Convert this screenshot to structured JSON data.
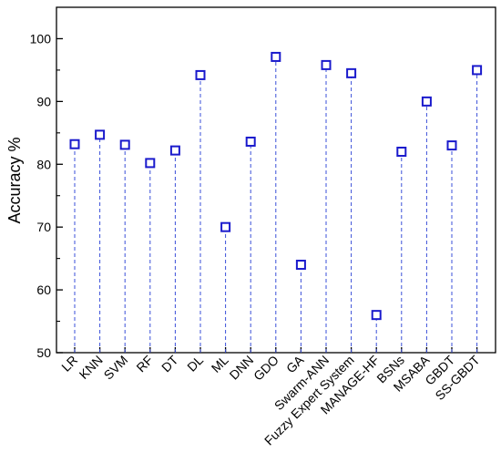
{
  "chart_data": {
    "type": "scatter",
    "title": "",
    "xlabel": "",
    "ylabel": "Accuracy %",
    "ylim": [
      50,
      105
    ],
    "yticks": [
      50,
      60,
      70,
      80,
      90,
      100
    ],
    "grid": false,
    "legend": "none",
    "marker": "open-square",
    "drop_lines": "dashed",
    "categories": [
      "LR",
      "KNN",
      "SVM",
      "RF",
      "DT",
      "DL",
      "ML",
      "DNN",
      "GDO",
      "GA",
      "Swarm-ANN",
      "Fuzzy Expert System",
      "MANAGE-HF",
      "BSNs",
      "MSABA",
      "GBDT",
      "SS-GBDT"
    ],
    "values": [
      83.2,
      84.7,
      83.1,
      80.2,
      82.2,
      94.2,
      70.0,
      83.6,
      97.1,
      64.0,
      95.8,
      94.5,
      56.0,
      82.0,
      90.0,
      83.0,
      95.0
    ]
  },
  "colors": {
    "marker": "#1a1acc",
    "drop_line": "#3a4fd8",
    "axis": "#000000"
  }
}
